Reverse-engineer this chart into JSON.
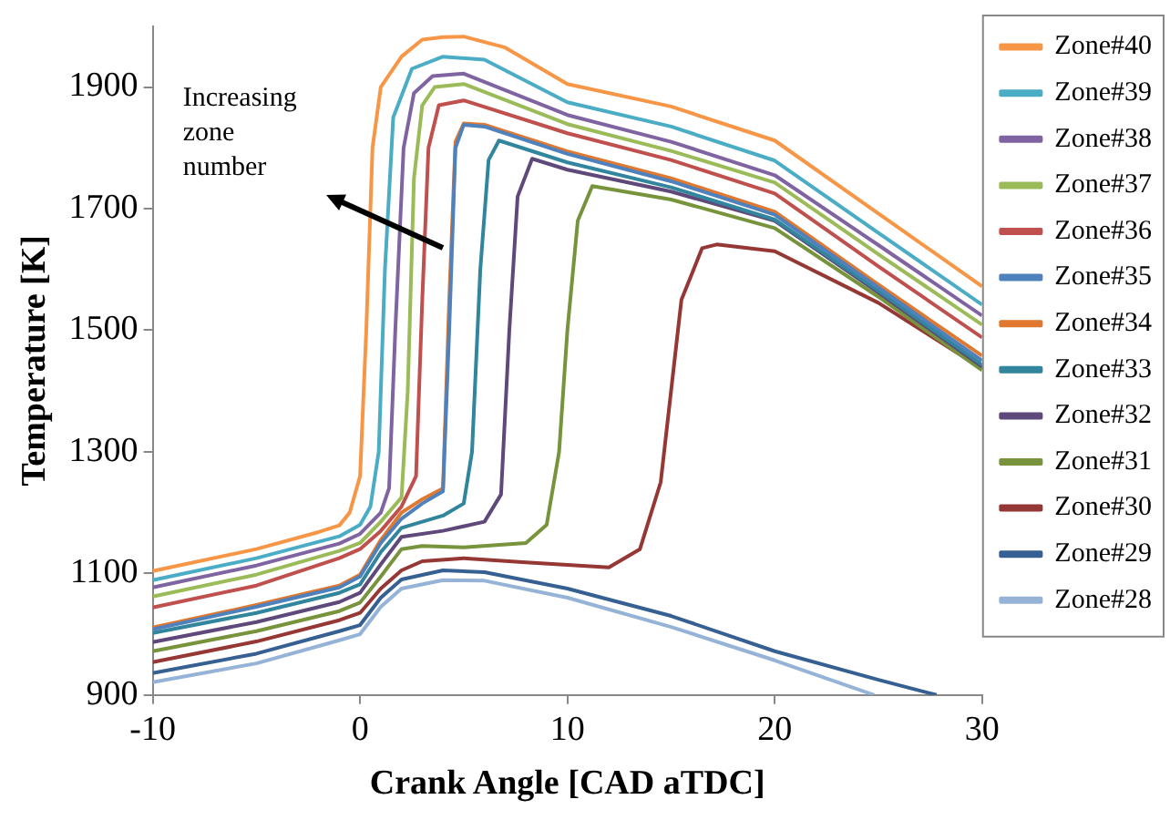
{
  "chart_data": {
    "type": "line",
    "xlabel": "Crank Angle [CAD aTDC]",
    "ylabel": "Temperature [K]",
    "xlim": [
      -10,
      30
    ],
    "xticks": [
      -10,
      0,
      10,
      20,
      30
    ],
    "ylim": [
      900,
      2000
    ],
    "yticks": [
      900,
      1100,
      1300,
      1500,
      1700,
      1900
    ],
    "grid": false,
    "legend": "right",
    "marker": "none",
    "line_style": "solid",
    "annotations": [
      "Increasing zone number"
    ],
    "series": [
      {
        "name": "Zone#40",
        "color": "#f79646",
        "x": [
          -10,
          -5,
          -2,
          -1,
          -0.5,
          0,
          0.3,
          0.6,
          1,
          2,
          3,
          4,
          5,
          7,
          10,
          15,
          20,
          25,
          30
        ],
        "values": [
          1104,
          1140,
          1168,
          1179,
          1200,
          1260,
          1500,
          1800,
          1900,
          1950,
          1978,
          1982,
          1983,
          1965,
          1905,
          1868,
          1812,
          1692,
          1572
        ]
      },
      {
        "name": "Zone#39",
        "color": "#4bacc6",
        "x": [
          -10,
          -5,
          -1,
          0,
          0.5,
          0.9,
          1.2,
          1.6,
          2.5,
          4,
          6,
          10,
          15,
          20,
          25,
          30
        ],
        "values": [
          1089,
          1125,
          1161,
          1180,
          1210,
          1300,
          1600,
          1850,
          1930,
          1950,
          1945,
          1875,
          1835,
          1779,
          1660,
          1542
        ]
      },
      {
        "name": "Zone#38",
        "color": "#8064a2",
        "x": [
          -10,
          -5,
          -1,
          0,
          1,
          1.4,
          1.7,
          2.1,
          2.6,
          3.5,
          5,
          10,
          15,
          20,
          25,
          30
        ],
        "values": [
          1077,
          1113,
          1149,
          1165,
          1200,
          1240,
          1500,
          1800,
          1890,
          1918,
          1922,
          1854,
          1810,
          1755,
          1640,
          1524
        ]
      },
      {
        "name": "Zone#37",
        "color": "#9bbb59",
        "x": [
          -10,
          -5,
          -1,
          0,
          1,
          2,
          2.3,
          2.6,
          3,
          3.6,
          5,
          10,
          15,
          20,
          25,
          30
        ],
        "values": [
          1062,
          1098,
          1137,
          1150,
          1185,
          1225,
          1400,
          1750,
          1870,
          1900,
          1905,
          1839,
          1795,
          1743,
          1625,
          1509
        ]
      },
      {
        "name": "Zone#36",
        "color": "#c0504d",
        "x": [
          -10,
          -5,
          -1,
          0,
          1,
          2,
          2.7,
          3,
          3.3,
          3.8,
          5,
          10,
          15,
          20,
          25,
          30
        ],
        "values": [
          1044,
          1080,
          1125,
          1140,
          1170,
          1210,
          1260,
          1550,
          1800,
          1870,
          1878,
          1824,
          1780,
          1725,
          1605,
          1488
        ]
      },
      {
        "name": "Zone#35",
        "color": "#4f81bd",
        "x": [
          -10,
          -5,
          -1,
          0,
          1,
          2,
          3,
          4,
          4.3,
          4.6,
          5,
          6,
          10,
          15,
          20,
          25,
          30
        ],
        "values": [
          1008,
          1045,
          1077,
          1095,
          1150,
          1190,
          1215,
          1235,
          1500,
          1800,
          1838,
          1835,
          1790,
          1745,
          1690,
          1570,
          1450
        ]
      },
      {
        "name": "Zone#34",
        "color": "#e0782f",
        "x": [
          -10,
          -5,
          -1,
          0,
          1,
          2,
          3,
          4,
          4.3,
          4.6,
          5,
          6,
          10,
          15,
          20,
          25,
          30
        ],
        "values": [
          1011,
          1048,
          1080,
          1098,
          1155,
          1200,
          1222,
          1240,
          1550,
          1810,
          1840,
          1838,
          1794,
          1750,
          1695,
          1575,
          1458
        ]
      },
      {
        "name": "Zone#33",
        "color": "#31859c",
        "x": [
          -10,
          -5,
          -1,
          0,
          1,
          2,
          3,
          4,
          5,
          5.4,
          5.8,
          6.2,
          6.7,
          10,
          15,
          20,
          25,
          30
        ],
        "values": [
          1002,
          1035,
          1068,
          1082,
          1135,
          1175,
          1185,
          1195,
          1215,
          1300,
          1600,
          1780,
          1812,
          1776,
          1735,
          1682,
          1565,
          1443
        ]
      },
      {
        "name": "Zone#32",
        "color": "#5f497a",
        "x": [
          -10,
          -5,
          -1,
          0,
          1,
          2,
          4,
          6,
          6.8,
          7.2,
          7.6,
          8.3,
          10,
          15,
          20,
          25,
          30
        ],
        "values": [
          987,
          1020,
          1053,
          1068,
          1115,
          1160,
          1170,
          1185,
          1230,
          1500,
          1720,
          1782,
          1764,
          1728,
          1680,
          1562,
          1440
        ]
      },
      {
        "name": "Zone#31",
        "color": "#77933c",
        "x": [
          -10,
          -5,
          -1,
          0,
          1,
          2,
          3,
          5,
          8,
          9,
          9.6,
          10,
          10.5,
          11.2,
          15,
          20,
          25,
          30
        ],
        "values": [
          972,
          1005,
          1038,
          1052,
          1095,
          1140,
          1145,
          1143,
          1150,
          1180,
          1300,
          1500,
          1680,
          1737,
          1715,
          1668,
          1555,
          1434
        ]
      },
      {
        "name": "Zone#30",
        "color": "#953735",
        "x": [
          -10,
          -5,
          -1,
          0,
          1,
          2,
          3,
          5,
          8,
          12,
          13.5,
          14.5,
          15,
          15.5,
          16.5,
          17.2,
          20,
          25,
          30
        ],
        "values": [
          954,
          988,
          1023,
          1035,
          1075,
          1105,
          1120,
          1125,
          1118,
          1110,
          1140,
          1250,
          1400,
          1550,
          1635,
          1641,
          1630,
          1545,
          1437
        ]
      },
      {
        "name": "Zone#29",
        "color": "#366092",
        "x": [
          -10,
          -5,
          -1,
          0,
          1,
          2,
          4,
          6,
          10,
          15,
          20,
          25,
          27.8
        ],
        "values": [
          936,
          968,
          1005,
          1015,
          1060,
          1090,
          1105,
          1102,
          1075,
          1030,
          972,
          925,
          900
        ]
      },
      {
        "name": "Zone#28",
        "color": "#95b3d7",
        "x": [
          -10,
          -5,
          -1,
          0,
          1,
          2,
          4,
          6,
          10,
          15,
          20,
          24.8
        ],
        "values": [
          921,
          952,
          990,
          1000,
          1045,
          1075,
          1089,
          1088,
          1060,
          1012,
          957,
          900
        ]
      }
    ]
  }
}
